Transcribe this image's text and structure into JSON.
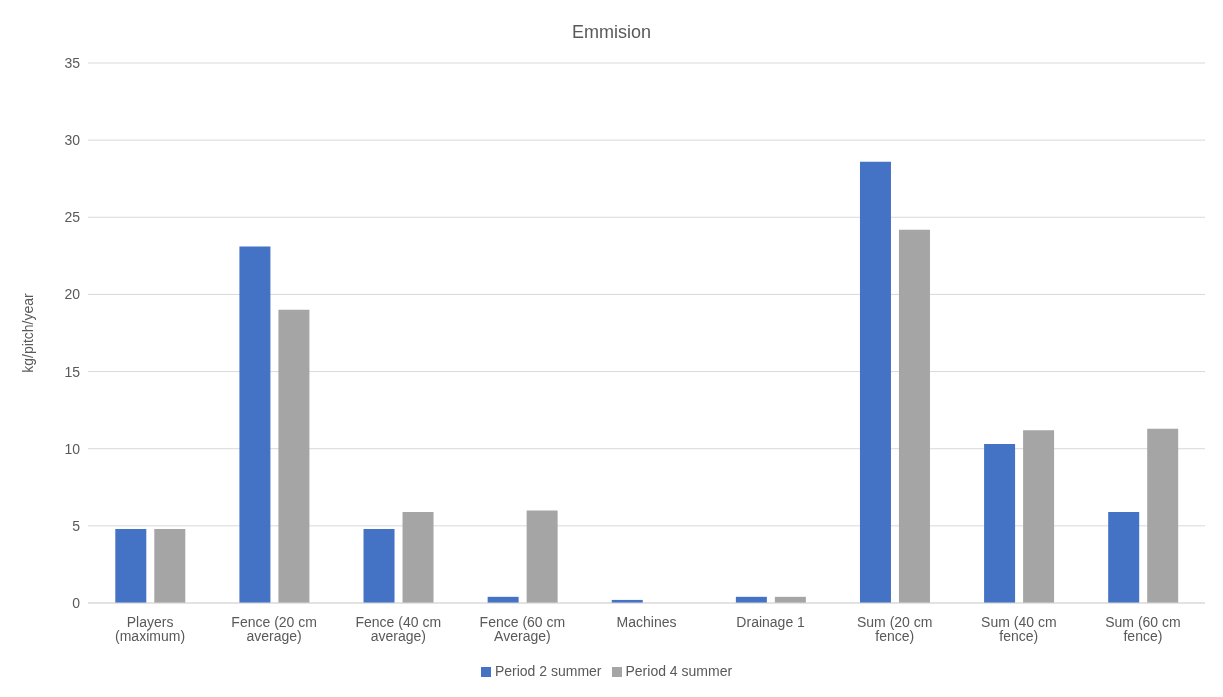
{
  "chart_data": {
    "type": "bar",
    "title": "Emmision",
    "ylabel": "kg/pitch/year",
    "categories": [
      "Players (maximum)",
      "Fence (20 cm average)",
      "Fence (40 cm average)",
      "Fence (60 cm Average)",
      "Machines",
      "Drainage 1",
      "Sum (20 cm fence)",
      "Sum (40 cm fence)",
      "Sum (60 cm fence)"
    ],
    "series": [
      {
        "name": "Period 2 summer",
        "color": "#4472c4",
        "values": [
          4.8,
          23.1,
          4.8,
          0.4,
          0.2,
          0.4,
          28.6,
          10.3,
          5.9
        ]
      },
      {
        "name": "Period 4 summer",
        "color": "#a5a5a5",
        "values": [
          4.8,
          19.0,
          5.9,
          6.0,
          0,
          0.4,
          24.2,
          11.2,
          11.3
        ]
      }
    ],
    "ylim": [
      0,
      35
    ],
    "yticks": [
      0,
      5,
      10,
      15,
      20,
      25,
      30,
      35
    ],
    "grid": "y",
    "legend": "bottom"
  }
}
